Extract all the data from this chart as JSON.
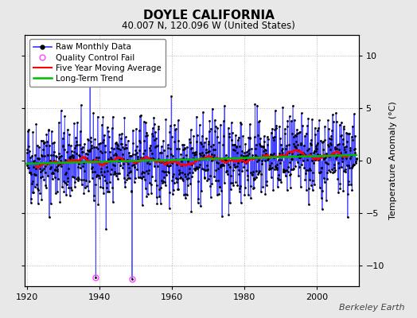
{
  "title": "DOYLE CALIFORNIA",
  "subtitle": "40.007 N, 120.096 W (United States)",
  "ylabel": "Temperature Anomaly (°C)",
  "ylim": [
    -12,
    12
  ],
  "yticks": [
    -10,
    -5,
    0,
    5,
    10
  ],
  "xlim": [
    1919.5,
    2011.5
  ],
  "xticks": [
    1920,
    1940,
    1960,
    1980,
    2000
  ],
  "start_year": 1920,
  "n_months": 1092,
  "seed": 42,
  "raw_color": "#3333ff",
  "dot_color": "#000000",
  "ma_color": "#ff0000",
  "trend_color": "#00bb00",
  "qc_color": "#ff44ff",
  "bg_color": "#e8e8e8",
  "plot_bg": "#ffffff",
  "legend_entries": [
    "Raw Monthly Data",
    "Quality Control Fail",
    "Five Year Moving Average",
    "Long-Term Trend"
  ],
  "title_fontsize": 11,
  "subtitle_fontsize": 8.5,
  "axis_fontsize": 8,
  "tick_fontsize": 8,
  "legend_fontsize": 7.5,
  "watermark": "Berkeley Earth",
  "watermark_fontsize": 8,
  "qc_month_indices": [
    228,
    348
  ],
  "qc_values": [
    -11.2,
    -11.3
  ]
}
